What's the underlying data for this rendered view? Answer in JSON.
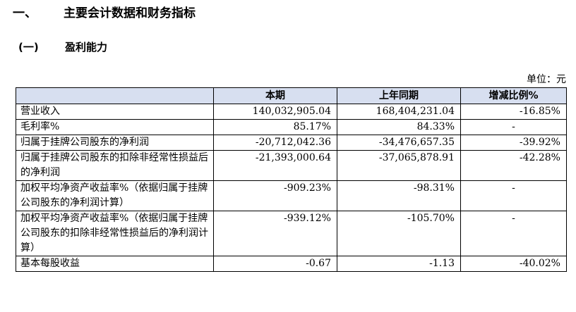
{
  "heading": {
    "number": "一、",
    "title": "主要会计数据和财务指标"
  },
  "subheading": {
    "number": "(一)",
    "title": "盈利能力"
  },
  "unit_label": "单位：元",
  "table": {
    "headers": [
      "",
      "本期",
      "上年同期",
      "增减比例%"
    ],
    "rows": [
      {
        "item": "营业收入",
        "current": "140,032,905.04",
        "prior": "168,404,231.04",
        "change": "-16.85%"
      },
      {
        "item": "毛利率%",
        "current": "85.17%",
        "prior": "84.33%",
        "change": "-"
      },
      {
        "item": "归属于挂牌公司股东的净利润",
        "current": "-20,712,042.36",
        "prior": "-34,476,657.35",
        "change": "-39.92%"
      },
      {
        "item": "归属于挂牌公司股东的扣除非经常性损益后的净利润",
        "current": "-21,393,000.64",
        "prior": "-37,065,878.91",
        "change": "-42.28%"
      },
      {
        "item": "加权平均净资产收益率%（依据归属于挂牌公司股东的净利润计算）",
        "current": "-909.23%",
        "prior": "-98.31%",
        "change": "-"
      },
      {
        "item": "加权平均净资产收益率%（依据归属于挂牌公司股东的扣除非经常性损益后的净利润计算）",
        "current": "-939.12%",
        "prior": "-105.70%",
        "change": "-"
      },
      {
        "item": "基本每股收益",
        "current": "-0.67",
        "prior": "-1.13",
        "change": "-40.02%"
      }
    ]
  }
}
